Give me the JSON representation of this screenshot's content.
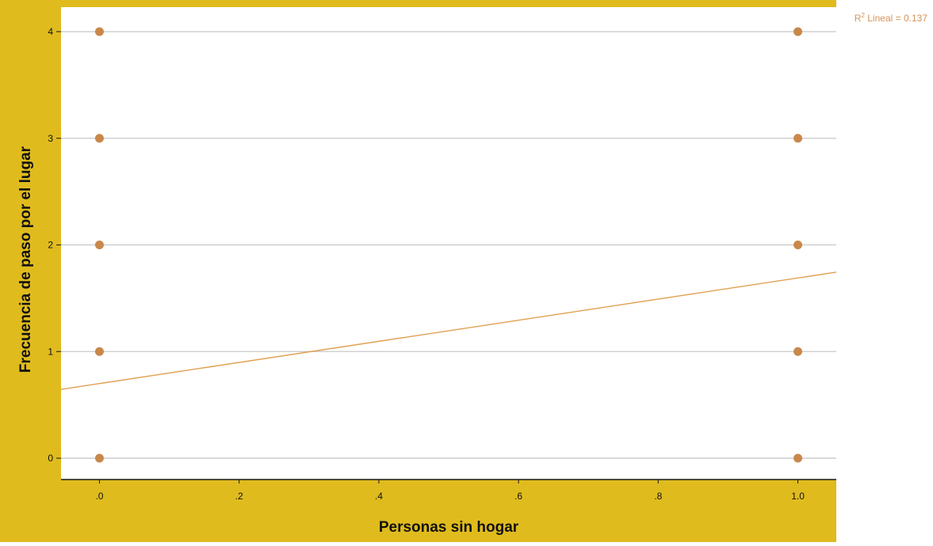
{
  "chart_data": {
    "type": "scatter",
    "xlabel": "Personas sin hogar",
    "ylabel": "Frecuencia de paso por el lugar",
    "xlim": [
      -0.055,
      1.055
    ],
    "ylim": [
      -0.2,
      4.23
    ],
    "x_ticks": [
      0,
      0.2,
      0.4,
      0.6,
      0.8,
      1.0
    ],
    "x_tick_labels": [
      ".0",
      ".2",
      ".4",
      ".6",
      ".8",
      "1.0"
    ],
    "y_ticks": [
      0,
      1,
      2,
      3,
      4
    ],
    "y_tick_labels": [
      "0",
      "1",
      "2",
      "3",
      "4"
    ],
    "grid": "horizontal",
    "points": [
      {
        "x": 0,
        "y": 0
      },
      {
        "x": 0,
        "y": 1
      },
      {
        "x": 0,
        "y": 2
      },
      {
        "x": 0,
        "y": 3
      },
      {
        "x": 0,
        "y": 4
      },
      {
        "x": 1,
        "y": 0
      },
      {
        "x": 1,
        "y": 1
      },
      {
        "x": 1,
        "y": 2
      },
      {
        "x": 1,
        "y": 3
      },
      {
        "x": 1,
        "y": 4
      }
    ],
    "fit_line": {
      "intercept": 0.7,
      "slope": 0.99
    },
    "annotation": {
      "r_label": "R",
      "superscript": "2",
      "text": " Lineal = 0.137"
    },
    "colors": {
      "frame": "#e0bb1e",
      "point": "#c9874a",
      "fit": "#e0a050",
      "annotation": "#d4935a",
      "grid": "#c8c8c8"
    }
  }
}
